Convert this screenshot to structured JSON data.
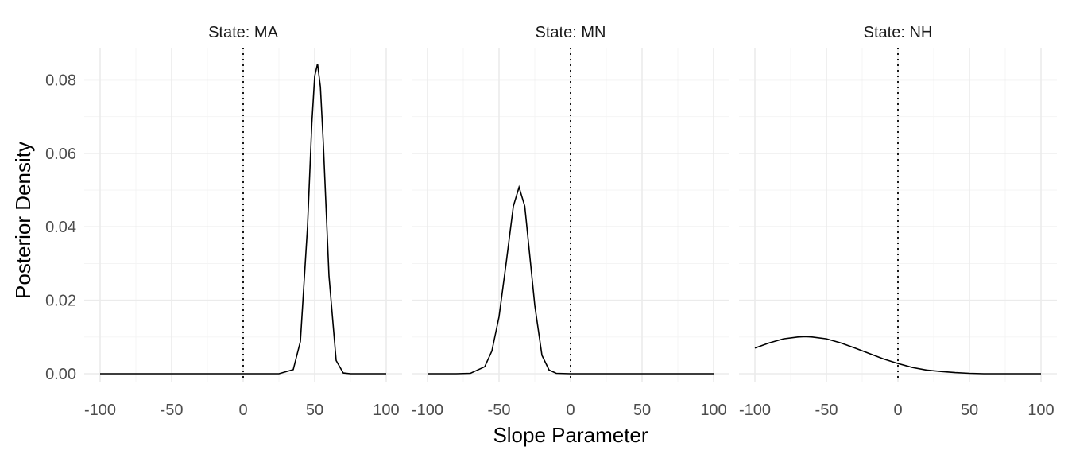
{
  "chart_data": {
    "type": "line",
    "xlabel": "Slope Parameter",
    "ylabel": "Posterior Density",
    "xlim": [
      -100,
      100
    ],
    "ylim": [
      0,
      0.088
    ],
    "x_ticks": [
      -100,
      -50,
      0,
      50,
      100
    ],
    "y_ticks": [
      0.0,
      0.02,
      0.04,
      0.06,
      0.08
    ],
    "y_tick_labels": [
      "0.00",
      "0.02",
      "0.04",
      "0.06",
      "0.08"
    ],
    "grid": true,
    "reference_line": {
      "x": 0,
      "style": "dotted"
    },
    "panels": [
      {
        "strip": "State: MA",
        "x": [
          -100,
          -75,
          -50,
          -25,
          0,
          25,
          35,
          40,
          45,
          48,
          50,
          52,
          54,
          56,
          60,
          65,
          70,
          75,
          100
        ],
        "y": [
          0,
          0,
          0,
          0,
          0,
          0,
          0.0011,
          0.0088,
          0.0401,
          0.0681,
          0.081,
          0.0844,
          0.0781,
          0.063,
          0.0266,
          0.0036,
          0.0002,
          0,
          0
        ]
      },
      {
        "strip": "State: MN",
        "x": [
          -100,
          -80,
          -70,
          -60,
          -55,
          -50,
          -45,
          -40,
          -36,
          -32,
          -28,
          -25,
          -20,
          -15,
          -10,
          0,
          25,
          50,
          100
        ],
        "y": [
          0,
          0,
          0.0001,
          0.0019,
          0.0062,
          0.0155,
          0.0302,
          0.0456,
          0.0508,
          0.0456,
          0.0302,
          0.0186,
          0.005,
          0.001,
          0.0001,
          0,
          0,
          0,
          0
        ]
      },
      {
        "strip": "State: NH",
        "x": [
          -100,
          -90,
          -80,
          -70,
          -65,
          -60,
          -50,
          -40,
          -30,
          -20,
          -10,
          0,
          10,
          20,
          30,
          40,
          50,
          60,
          70,
          80,
          90,
          100
        ],
        "y": [
          0.007,
          0.0084,
          0.0095,
          0.01,
          0.0101,
          0.01,
          0.0095,
          0.0084,
          0.007,
          0.0055,
          0.004,
          0.0028,
          0.0017,
          0.001,
          0.0006,
          0.0003,
          0.0001,
          0,
          0,
          0,
          0,
          0
        ]
      }
    ]
  }
}
